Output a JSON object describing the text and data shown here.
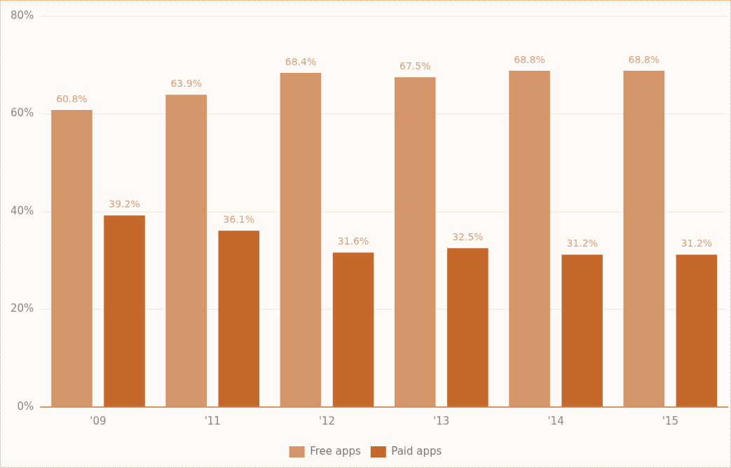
{
  "chart_data": {
    "type": "bar",
    "categories": [
      "'09",
      "'11",
      "'12",
      "'13",
      "'14",
      "'15"
    ],
    "series": [
      {
        "name": "Free apps",
        "color": "#d4956a",
        "values": [
          60.8,
          63.9,
          68.4,
          67.5,
          68.8,
          68.8
        ],
        "value_labels": [
          "60.8%",
          "63.9%",
          "68.4%",
          "67.5%",
          "68.8%",
          "68.8%"
        ]
      },
      {
        "name": "Paid apps",
        "color": "#c4682c",
        "values": [
          39.2,
          36.1,
          31.6,
          32.5,
          31.2,
          31.2
        ],
        "value_labels": [
          "39.2%",
          "36.1%",
          "31.6%",
          "32.5%",
          "31.2%",
          "31.2%"
        ]
      }
    ],
    "ylim": [
      0,
      80
    ],
    "yticks": [
      {
        "value": 0,
        "label": "0%"
      },
      {
        "value": 20,
        "label": "20%"
      },
      {
        "value": 40,
        "label": "40%"
      },
      {
        "value": 60,
        "label": "60%"
      },
      {
        "value": 80,
        "label": "80%"
      }
    ],
    "grid": "y",
    "legend": "bottom"
  }
}
